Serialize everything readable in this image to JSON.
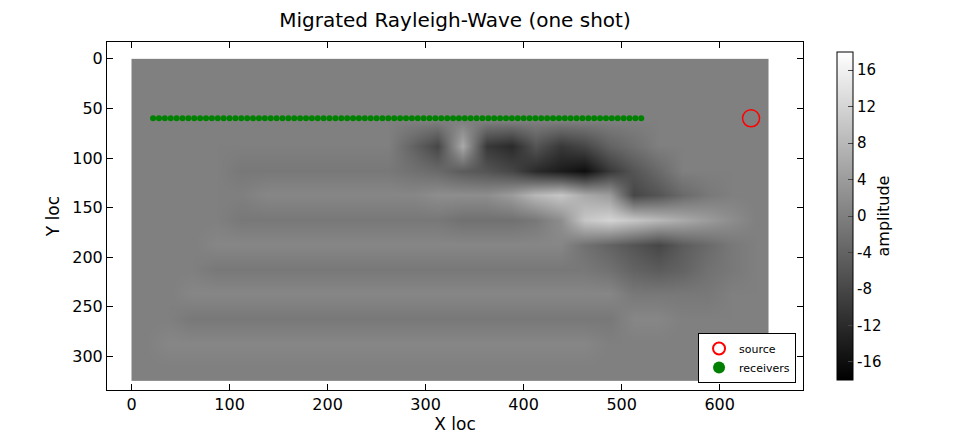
{
  "chart_data": {
    "type": "heatmap",
    "title": "Migrated Rayleigh-Wave (one shot)",
    "x_label": "X loc",
    "y_label": "Y loc",
    "xlim": [
      -25,
      685
    ],
    "ylim": [
      -17,
      334
    ],
    "xticks": [
      0,
      100,
      200,
      300,
      400,
      500,
      600
    ],
    "yticks": [
      0,
      50,
      100,
      150,
      200,
      250,
      300
    ],
    "grid": false,
    "legend": "lower right",
    "heatmap": {
      "x": [
        12.5,
        37.5,
        62.5,
        87.5,
        112.5,
        137.5,
        162.5,
        187.5,
        212.5,
        237.5,
        262.5,
        287.5,
        312.5,
        337.5,
        362.5,
        387.5,
        412.5,
        437.5,
        462.5,
        487.5,
        512.5,
        537.5,
        562.5,
        587.5,
        612.5,
        637.5
      ],
      "y": [
        12.5,
        37.5,
        62.5,
        87.5,
        112.5,
        137.5,
        162.5,
        187.5,
        212.5,
        237.5,
        262.5,
        287.5,
        312.5
      ],
      "z": [
        [
          0,
          0,
          0,
          0,
          0,
          0,
          0,
          0,
          0,
          0,
          0,
          0,
          0,
          0,
          0,
          0,
          0,
          0,
          0,
          0,
          0,
          0,
          0,
          0,
          0,
          0
        ],
        [
          0,
          0,
          0,
          0,
          0,
          0,
          0,
          0,
          0,
          0,
          0,
          0,
          0,
          0,
          0,
          0,
          0,
          0,
          0,
          0,
          0,
          0,
          0,
          0,
          0,
          0
        ],
        [
          0,
          0,
          0,
          0,
          0,
          0,
          0,
          0,
          0,
          0,
          0,
          0,
          0,
          0,
          0,
          0,
          0,
          0,
          0,
          0,
          0,
          0,
          0,
          0,
          0,
          0
        ],
        [
          0,
          0,
          0,
          0,
          0,
          0,
          0,
          0,
          0,
          0,
          0,
          -4,
          -8,
          6,
          -10,
          -12,
          -6,
          -10,
          -8,
          -4,
          -2,
          0,
          0,
          0,
          0,
          0
        ],
        [
          0,
          0,
          0,
          0,
          -1,
          -1,
          -1,
          -1,
          -1,
          -1,
          -1,
          -2,
          -3,
          -5,
          -6,
          -8,
          -12,
          -14,
          -16,
          -10,
          -6,
          -3,
          0,
          0,
          0,
          0
        ],
        [
          0,
          0,
          0,
          0,
          0,
          1,
          1,
          1,
          1,
          1,
          1,
          1,
          2,
          2,
          2,
          4,
          8,
          10,
          6,
          4,
          -8,
          -6,
          -3,
          -1,
          0,
          0
        ],
        [
          0,
          0,
          0,
          0,
          -1,
          -1,
          -1,
          -1,
          -1,
          -1,
          -1,
          -1,
          -1,
          -2,
          -2,
          -2,
          -1,
          2,
          10,
          12,
          10,
          8,
          6,
          4,
          2,
          0
        ],
        [
          0,
          0,
          0,
          1,
          1,
          1,
          1,
          1,
          1,
          1,
          1,
          1,
          1,
          1,
          1,
          1,
          1,
          1,
          -2,
          -4,
          -6,
          -8,
          -5,
          -3,
          -1,
          0
        ],
        [
          0,
          0,
          0,
          -1,
          -1,
          -1,
          -1,
          -1,
          -1,
          -1,
          -1,
          -1,
          -1,
          -1,
          -1,
          -1,
          -1,
          -1,
          -1,
          -2,
          -4,
          -5,
          -4,
          -2,
          -1,
          0
        ],
        [
          0,
          0,
          1,
          1,
          1,
          1,
          1,
          1,
          1,
          1,
          1,
          1,
          1,
          1,
          1,
          1,
          1,
          1,
          1,
          1,
          -1,
          -1,
          -1,
          -1,
          0,
          0
        ],
        [
          0,
          0,
          -1,
          -1,
          -1,
          -1,
          -1,
          -1,
          -1,
          -1,
          -1,
          -1,
          -1,
          -1,
          -1,
          -1,
          -1,
          -1,
          -1,
          -1,
          1,
          1,
          0,
          0,
          0,
          0
        ],
        [
          0,
          1,
          1,
          1,
          1,
          1,
          1,
          1,
          1,
          1,
          1,
          1,
          1,
          1,
          1,
          1,
          1,
          1,
          1,
          0,
          0,
          0,
          0,
          0,
          0,
          0
        ],
        [
          0,
          0,
          0,
          0,
          0,
          0,
          0,
          0,
          0,
          0,
          0,
          0,
          0,
          0,
          0,
          0,
          0,
          0,
          0,
          0,
          0,
          0,
          0,
          0,
          0,
          0
        ]
      ],
      "zlim": [
        -18,
        18
      ],
      "zticks": [
        -16,
        -12,
        -8,
        -4,
        0,
        4,
        8,
        12,
        16
      ],
      "colorbar_title": "amplitude"
    },
    "series": [
      {
        "name": "source",
        "type": "scatter",
        "marker": "open_circle",
        "color": "#ff0000",
        "x": [
          632
        ],
        "y": [
          60
        ]
      },
      {
        "name": "receivers",
        "type": "scatter",
        "marker": "dot",
        "color": "#008000",
        "x": [
          22,
          28,
          34,
          40,
          46,
          52,
          58,
          64,
          70,
          76,
          82,
          88,
          94,
          100,
          106,
          112,
          118,
          124,
          130,
          136,
          142,
          148,
          154,
          160,
          166,
          172,
          178,
          184,
          190,
          196,
          202,
          208,
          214,
          220,
          226,
          232,
          238,
          244,
          250,
          256,
          262,
          268,
          274,
          280,
          286,
          292,
          298,
          304,
          310,
          316,
          322,
          328,
          334,
          340,
          346,
          352,
          358,
          364,
          370,
          376,
          382,
          388,
          394,
          400,
          406,
          412,
          418,
          424,
          430,
          436,
          442,
          448,
          454,
          460,
          466,
          472,
          478,
          484,
          490,
          496,
          502,
          508,
          514,
          520
        ],
        "y": [
          60,
          60,
          60,
          60,
          60,
          60,
          60,
          60,
          60,
          60,
          60,
          60,
          60,
          60,
          60,
          60,
          60,
          60,
          60,
          60,
          60,
          60,
          60,
          60,
          60,
          60,
          60,
          60,
          60,
          60,
          60,
          60,
          60,
          60,
          60,
          60,
          60,
          60,
          60,
          60,
          60,
          60,
          60,
          60,
          60,
          60,
          60,
          60,
          60,
          60,
          60,
          60,
          60,
          60,
          60,
          60,
          60,
          60,
          60,
          60,
          60,
          60,
          60,
          60,
          60,
          60,
          60,
          60,
          60,
          60,
          60,
          60,
          60,
          60,
          60,
          60,
          60,
          60,
          60,
          60,
          60,
          60,
          60,
          60
        ]
      }
    ]
  }
}
